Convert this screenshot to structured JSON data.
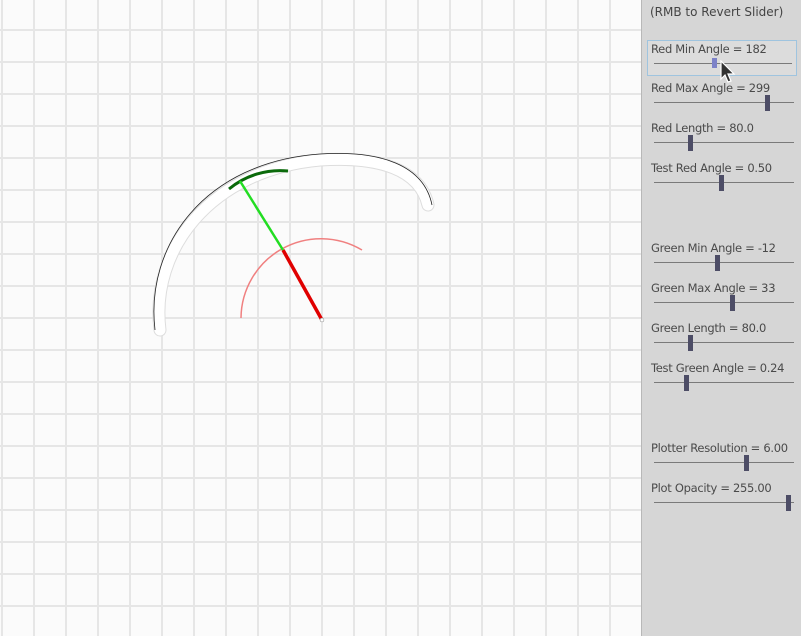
{
  "panel": {
    "hint": "(RMB to Revert Slider)",
    "sliders": [
      {
        "label": "Red Min Angle = 182",
        "value": 0.45,
        "active": true
      },
      {
        "label": "Red Max Angle = 299",
        "value": 0.84,
        "active": false
      },
      {
        "label": "Red Length = 80.0",
        "value": 0.27,
        "active": false
      },
      {
        "label": "Test Red Angle = 0.50",
        "value": 0.5,
        "active": false
      },
      {
        "label": "Green Min Angle = -12",
        "value": 0.47,
        "active": false
      },
      {
        "label": "Green Max Angle = 33",
        "value": 0.58,
        "active": false
      },
      {
        "label": "Green Length = 80.0",
        "value": 0.27,
        "active": false
      },
      {
        "label": "Test Green Angle = 0.24",
        "value": 0.24,
        "active": false
      },
      {
        "label": "Plotter Resolution = 6.00",
        "value": 0.69,
        "active": false
      },
      {
        "label": "Plot Opacity = 255.00",
        "value": 1.0,
        "active": false
      }
    ]
  },
  "colors": {
    "grid": "#e6e6e6",
    "red_arm": "#e00000",
    "red_arc": "#f08080",
    "green_arm": "#22dd22",
    "green_arc": "#0b6a0b",
    "plot": "#222222",
    "panel_bg": "#d6d6d6",
    "thumb": "#4d4d66"
  }
}
